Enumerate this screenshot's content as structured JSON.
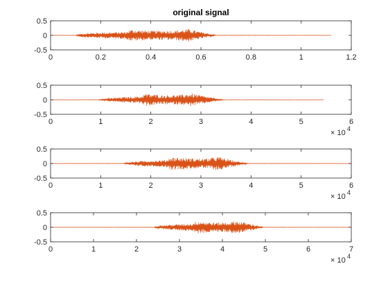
{
  "signal_color": "#D95319",
  "axis_color": "#262626",
  "chart_data": [
    {
      "type": "line",
      "title": "original signal",
      "xlim": [
        0,
        1.2
      ],
      "ylim": [
        -0.5,
        0.5
      ],
      "xticks": [
        0,
        0.2,
        0.4,
        0.6,
        0.8,
        1,
        1.2
      ],
      "xtick_labels": [
        "0",
        "0.2",
        "0.4",
        "0.6",
        "0.8",
        "1",
        "1.2"
      ],
      "yticks": [
        -0.5,
        0,
        0.5
      ],
      "ytick_labels": [
        "-0.5",
        "0",
        "0.5"
      ],
      "x_exponent_label": "",
      "signal_end": 1.12,
      "envelope": [
        [
          0,
          0.003
        ],
        [
          0.1,
          0.005
        ],
        [
          0.12,
          0.06
        ],
        [
          0.2,
          0.1
        ],
        [
          0.3,
          0.12
        ],
        [
          0.32,
          0.2
        ],
        [
          0.4,
          0.16
        ],
        [
          0.5,
          0.17
        ],
        [
          0.55,
          0.22
        ],
        [
          0.6,
          0.12
        ],
        [
          0.64,
          0.05
        ],
        [
          0.66,
          0.005
        ],
        [
          1.12,
          0.003
        ]
      ]
    },
    {
      "type": "line",
      "title": "",
      "xlim": [
        0,
        60000
      ],
      "ylim": [
        -0.5,
        0.5
      ],
      "xticks": [
        0,
        10000,
        20000,
        30000,
        40000,
        50000,
        60000
      ],
      "xtick_labels": [
        "0",
        "1",
        "2",
        "3",
        "4",
        "5",
        "6"
      ],
      "yticks": [
        -0.5,
        0,
        0.5
      ],
      "ytick_labels": [
        "-0.5",
        "0",
        "0.5"
      ],
      "x_exponent_label": "× 10",
      "x_exponent_power": "4",
      "signal_end": 54500,
      "envelope": [
        [
          0,
          0.003
        ],
        [
          9500,
          0.005
        ],
        [
          11000,
          0.05
        ],
        [
          15000,
          0.1
        ],
        [
          18000,
          0.12
        ],
        [
          19000,
          0.22
        ],
        [
          22000,
          0.16
        ],
        [
          26000,
          0.17
        ],
        [
          28000,
          0.22
        ],
        [
          31000,
          0.12
        ],
        [
          33000,
          0.05
        ],
        [
          34500,
          0.005
        ],
        [
          54500,
          0.003
        ]
      ]
    },
    {
      "type": "line",
      "title": "",
      "xlim": [
        0,
        60000
      ],
      "ylim": [
        -0.5,
        0.5
      ],
      "xticks": [
        0,
        10000,
        20000,
        30000,
        40000,
        50000,
        60000
      ],
      "xtick_labels": [
        "0",
        "1",
        "2",
        "3",
        "4",
        "5",
        "6"
      ],
      "yticks": [
        -0.5,
        0,
        0.5
      ],
      "ytick_labels": [
        "-0.5",
        "0",
        "0.5"
      ],
      "x_exponent_label": "× 10",
      "x_exponent_power": "4",
      "signal_end": 60000,
      "envelope": [
        [
          0,
          0.003
        ],
        [
          14500,
          0.005
        ],
        [
          15500,
          0.05
        ],
        [
          19000,
          0.1
        ],
        [
          23000,
          0.12
        ],
        [
          24000,
          0.22
        ],
        [
          28000,
          0.18
        ],
        [
          31000,
          0.17
        ],
        [
          33500,
          0.24
        ],
        [
          36000,
          0.12
        ],
        [
          38000,
          0.05
        ],
        [
          39500,
          0.005
        ],
        [
          60000,
          0.003
        ]
      ]
    },
    {
      "type": "line",
      "title": "",
      "xlim": [
        0,
        70000
      ],
      "ylim": [
        -0.5,
        0.5
      ],
      "xticks": [
        0,
        10000,
        20000,
        30000,
        40000,
        50000,
        60000,
        70000
      ],
      "xtick_labels": [
        "0",
        "1",
        "2",
        "3",
        "4",
        "5",
        "6",
        "7"
      ],
      "yticks": [
        -0.5,
        0,
        0.5
      ],
      "ytick_labels": [
        "-0.5",
        "0",
        "0.5"
      ],
      "x_exponent_label": "× 10",
      "x_exponent_power": "4",
      "signal_end": 70000,
      "envelope": [
        [
          0,
          0.003
        ],
        [
          24000,
          0.005
        ],
        [
          25000,
          0.06
        ],
        [
          30000,
          0.11
        ],
        [
          33000,
          0.13
        ],
        [
          34000,
          0.22
        ],
        [
          38000,
          0.16
        ],
        [
          41000,
          0.17
        ],
        [
          43500,
          0.22
        ],
        [
          46500,
          0.12
        ],
        [
          48500,
          0.05
        ],
        [
          49500,
          0.005
        ],
        [
          70000,
          0.003
        ]
      ]
    }
  ]
}
